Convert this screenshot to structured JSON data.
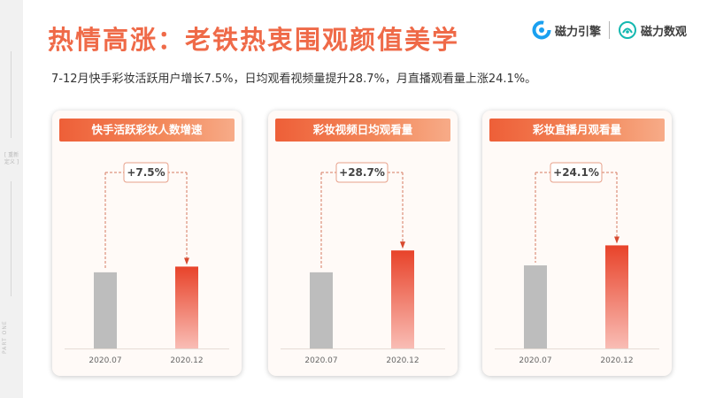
{
  "side": {
    "tag": "[ 重新定义 ]",
    "part": "PART ONE"
  },
  "header": {
    "title": "热情高涨：老铁热衷围观颜值美学",
    "subtitle": "7-12月快手彩妆活跃用户增长7.5%，日均观看视频量提升28.7%，月直播观看量上涨24.1%。"
  },
  "logos": {
    "left": "磁力引擎",
    "right": "磁力数观"
  },
  "colors": {
    "accent": "#ef6a48",
    "bar_gray": "#bdbdbd",
    "bar_highlight_top": "#e8432a",
    "bar_highlight_bottom": "#f9bdb5"
  },
  "chart_data": [
    {
      "type": "bar",
      "title": "快手活跃彩妆人数增速",
      "categories": [
        "2020.07",
        "2020.12"
      ],
      "values": [
        100,
        107.5
      ],
      "growth_label": "+7.5%",
      "ylim": [
        0,
        180
      ]
    },
    {
      "type": "bar",
      "title": "彩妆视频日均观看量",
      "categories": [
        "2020.07",
        "2020.12"
      ],
      "values": [
        100,
        128.7
      ],
      "growth_label": "+28.7%",
      "ylim": [
        0,
        180
      ]
    },
    {
      "type": "bar",
      "title": "彩妆直播月观看量",
      "categories": [
        "2020.07",
        "2020.12"
      ],
      "values": [
        100,
        124.1
      ],
      "growth_label": "+24.1%",
      "ylim": [
        0,
        165
      ]
    }
  ]
}
